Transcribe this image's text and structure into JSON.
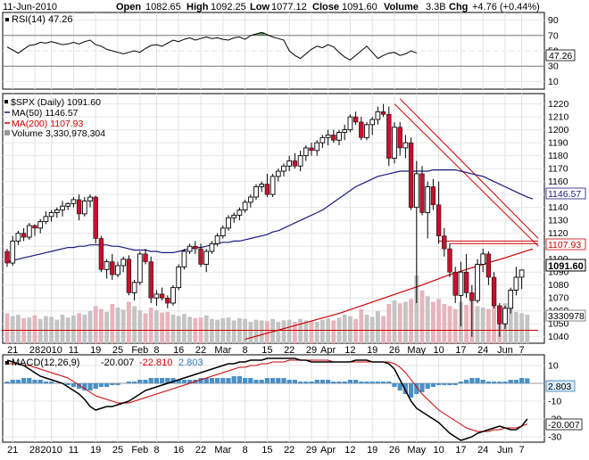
{
  "header": {
    "date": "11-Jun-2010",
    "open_label": "Open",
    "open": "1082.65",
    "high_label": "High",
    "high": "1092.25",
    "low_label": "Low",
    "low": "1077.12",
    "close_label": "Close",
    "close": "1091.60",
    "volume_label": "Volume",
    "volume": "3.3B",
    "chg_label": "Chg",
    "chg": "+4.76 (+0.44%)"
  },
  "rsi": {
    "legend": "RSI(14) 47.26",
    "value_tag": "47.26",
    "ticks": [
      "90",
      "70",
      "50",
      "30",
      "10"
    ],
    "ylim": [
      0,
      100
    ],
    "values": [
      55,
      51,
      47,
      52,
      57,
      58,
      61,
      60,
      62,
      60,
      58,
      59,
      61,
      59,
      62,
      64,
      58,
      56,
      52,
      50,
      48,
      46,
      48,
      50,
      48,
      53,
      57,
      58,
      56,
      60,
      64,
      62,
      65,
      67,
      64,
      66,
      68,
      66,
      67,
      65,
      64,
      67,
      68,
      65,
      70,
      72,
      74,
      71,
      68,
      66,
      64,
      50,
      44,
      40,
      46,
      52,
      56,
      54,
      58,
      55,
      48,
      42,
      38,
      44,
      50,
      56,
      48,
      40,
      44,
      47,
      48,
      44,
      46,
      50,
      47
    ]
  },
  "price": {
    "legend_symbol": "$SPX (Daily) 1091.60",
    "legend_ma50": "MA(50) 1146.57",
    "legend_ma200": "MA(200) 1107.93",
    "legend_volume": "Volume 3,330,978,304",
    "tag_ma50": "1146.57",
    "tag_ma200": "1107.93",
    "tag_close": "1091.60",
    "tag_volume": "3330978",
    "ticks": [
      "1220",
      "1210",
      "1200",
      "1190",
      "1180",
      "1170",
      "1160",
      "1150",
      "1140",
      "1130",
      "1120",
      "1110",
      "1100",
      "1090",
      "1080",
      "1070",
      "1060",
      "1050",
      "1040"
    ]
  },
  "macd": {
    "legend_name": "MACD(12,26,9)",
    "legend_macd": "-20.007",
    "legend_signal": "-22.810",
    "legend_hist": "2.803",
    "tag_hist": "2.803",
    "tag_macd": "-20.007",
    "ticks": [
      "10",
      "0",
      "-10",
      "-20",
      "-30"
    ]
  },
  "x_axis": {
    "labels": [
      {
        "i": 1,
        "t": "21"
      },
      {
        "i": 5,
        "t": "28"
      },
      {
        "i": 8,
        "t": "2010"
      },
      {
        "i": 12,
        "t": "11"
      },
      {
        "i": 16,
        "t": "19"
      },
      {
        "i": 20,
        "t": "25"
      },
      {
        "i": 24,
        "t": "Feb"
      },
      {
        "i": 27,
        "t": "8"
      },
      {
        "i": 31,
        "t": "16"
      },
      {
        "i": 35,
        "t": "22"
      },
      {
        "i": 39,
        "t": "Mar"
      },
      {
        "i": 43,
        "t": "8"
      },
      {
        "i": 47,
        "t": "15"
      },
      {
        "i": 51,
        "t": "22"
      },
      {
        "i": 55,
        "t": "29"
      },
      {
        "i": 58,
        "t": "Apr"
      },
      {
        "i": 62,
        "t": "12"
      },
      {
        "i": 66,
        "t": "19"
      },
      {
        "i": 70,
        "t": "26"
      },
      {
        "i": 74,
        "t": "May"
      },
      {
        "i": 78,
        "t": "10"
      },
      {
        "i": 82,
        "t": "17"
      },
      {
        "i": 86,
        "t": "24"
      },
      {
        "i": 90,
        "t": "Jun"
      },
      {
        "i": 93,
        "t": "7"
      }
    ]
  },
  "chart_data": {
    "type": "candlestick",
    "symbol": "$SPX (Daily)",
    "ylim": [
      1035,
      1228
    ],
    "candles": [
      [
        1106,
        1108,
        1094,
        1097
      ],
      [
        1097,
        1118,
        1095,
        1114
      ],
      [
        1114,
        1122,
        1111,
        1120
      ],
      [
        1120,
        1124,
        1114,
        1117
      ],
      [
        1117,
        1128,
        1115,
        1126
      ],
      [
        1126,
        1127,
        1118,
        1124
      ],
      [
        1124,
        1131,
        1120,
        1129
      ],
      [
        1129,
        1137,
        1127,
        1133
      ],
      [
        1133,
        1138,
        1129,
        1136
      ],
      [
        1136,
        1140,
        1132,
        1138
      ],
      [
        1138,
        1145,
        1133,
        1141
      ],
      [
        1141,
        1144,
        1138,
        1143
      ],
      [
        1143,
        1148,
        1140,
        1146
      ],
      [
        1146,
        1150,
        1130,
        1135
      ],
      [
        1135,
        1148,
        1133,
        1145
      ],
      [
        1145,
        1150,
        1140,
        1148
      ],
      [
        1148,
        1149,
        1112,
        1116
      ],
      [
        1116,
        1118,
        1090,
        1092
      ],
      [
        1092,
        1100,
        1085,
        1098
      ],
      [
        1098,
        1104,
        1084,
        1088
      ],
      [
        1088,
        1098,
        1086,
        1095
      ],
      [
        1095,
        1102,
        1090,
        1100
      ],
      [
        1100,
        1103,
        1072,
        1074
      ],
      [
        1074,
        1084,
        1068,
        1082
      ],
      [
        1082,
        1106,
        1080,
        1104
      ],
      [
        1104,
        1108,
        1096,
        1098
      ],
      [
        1098,
        1102,
        1066,
        1070
      ],
      [
        1070,
        1076,
        1064,
        1073
      ],
      [
        1073,
        1078,
        1068,
        1070
      ],
      [
        1070,
        1072,
        1062,
        1066
      ],
      [
        1066,
        1080,
        1064,
        1078
      ],
      [
        1078,
        1096,
        1076,
        1094
      ],
      [
        1094,
        1108,
        1092,
        1106
      ],
      [
        1106,
        1112,
        1104,
        1110
      ],
      [
        1110,
        1114,
        1104,
        1108
      ],
      [
        1108,
        1112,
        1094,
        1096
      ],
      [
        1096,
        1108,
        1090,
        1106
      ],
      [
        1106,
        1114,
        1104,
        1112
      ],
      [
        1112,
        1120,
        1110,
        1118
      ],
      [
        1118,
        1126,
        1116,
        1124
      ],
      [
        1124,
        1134,
        1122,
        1132
      ],
      [
        1132,
        1136,
        1128,
        1134
      ],
      [
        1134,
        1140,
        1130,
        1138
      ],
      [
        1138,
        1146,
        1136,
        1144
      ],
      [
        1144,
        1150,
        1140,
        1148
      ],
      [
        1148,
        1158,
        1146,
        1156
      ],
      [
        1156,
        1160,
        1152,
        1158
      ],
      [
        1158,
        1166,
        1148,
        1150
      ],
      [
        1150,
        1166,
        1148,
        1164
      ],
      [
        1164,
        1170,
        1160,
        1168
      ],
      [
        1168,
        1174,
        1164,
        1172
      ],
      [
        1172,
        1180,
        1168,
        1176
      ],
      [
        1176,
        1182,
        1170,
        1172
      ],
      [
        1172,
        1184,
        1168,
        1180
      ],
      [
        1180,
        1188,
        1176,
        1186
      ],
      [
        1186,
        1190,
        1180,
        1184
      ],
      [
        1184,
        1192,
        1180,
        1190
      ],
      [
        1190,
        1196,
        1186,
        1194
      ],
      [
        1194,
        1200,
        1188,
        1196
      ],
      [
        1196,
        1200,
        1190,
        1192
      ],
      [
        1192,
        1200,
        1188,
        1198
      ],
      [
        1198,
        1204,
        1192,
        1200
      ],
      [
        1200,
        1212,
        1198,
        1210
      ],
      [
        1210,
        1214,
        1204,
        1206
      ],
      [
        1206,
        1210,
        1192,
        1194
      ],
      [
        1194,
        1206,
        1192,
        1204
      ],
      [
        1204,
        1210,
        1196,
        1208
      ],
      [
        1208,
        1218,
        1204,
        1214
      ],
      [
        1214,
        1220,
        1210,
        1212
      ],
      [
        1212,
        1218,
        1172,
        1178
      ],
      [
        1178,
        1206,
        1174,
        1202
      ],
      [
        1202,
        1206,
        1180,
        1186
      ],
      [
        1186,
        1196,
        1178,
        1190
      ],
      [
        1190,
        1194,
        1138,
        1140
      ],
      [
        1140,
        1176,
        1066,
        1166
      ],
      [
        1166,
        1172,
        1134,
        1136
      ],
      [
        1136,
        1160,
        1116,
        1156
      ],
      [
        1156,
        1162,
        1138,
        1142
      ],
      [
        1142,
        1160,
        1112,
        1118
      ],
      [
        1118,
        1124,
        1102,
        1108
      ],
      [
        1108,
        1112,
        1086,
        1090
      ],
      [
        1090,
        1094,
        1066,
        1072
      ],
      [
        1072,
        1098,
        1048,
        1090
      ],
      [
        1090,
        1104,
        1070,
        1074
      ],
      [
        1074,
        1080,
        1040,
        1068
      ],
      [
        1068,
        1100,
        1066,
        1096
      ],
      [
        1096,
        1108,
        1090,
        1104
      ],
      [
        1104,
        1106,
        1080,
        1086
      ],
      [
        1086,
        1090,
        1062,
        1064
      ],
      [
        1064,
        1066,
        1040,
        1050
      ],
      [
        1050,
        1064,
        1046,
        1062
      ],
      [
        1062,
        1078,
        1058,
        1076
      ],
      [
        1076,
        1094,
        1072,
        1086
      ],
      [
        1086,
        1092,
        1077,
        1091.6
      ]
    ],
    "ma50": [
      1098,
      1099,
      1100,
      1101,
      1102,
      1103,
      1104,
      1105,
      1106,
      1107,
      1108,
      1109,
      1109,
      1110,
      1110,
      1111,
      1111,
      1111,
      1111,
      1110,
      1110,
      1109,
      1108,
      1107,
      1107,
      1107,
      1106,
      1106,
      1105,
      1105,
      1105,
      1106,
      1107,
      1108,
      1109,
      1109,
      1110,
      1111,
      1112,
      1113,
      1113,
      1114,
      1114,
      1115,
      1116,
      1117,
      1118,
      1119,
      1121,
      1122,
      1124,
      1126,
      1128,
      1130,
      1132,
      1134,
      1136,
      1138,
      1141,
      1144,
      1147,
      1150,
      1153,
      1156,
      1158,
      1160,
      1162,
      1164,
      1165,
      1166,
      1167,
      1168,
      1168,
      1168,
      1168,
      1168,
      1168,
      1169,
      1169,
      1169,
      1169,
      1169,
      1168,
      1167,
      1166,
      1165,
      1164,
      1162,
      1160,
      1158,
      1156,
      1154,
      1152,
      1150,
      1148,
      1146.57
    ],
    "ma200_points": [
      [
        43,
        1038
      ],
      [
        60,
        1058
      ],
      [
        75,
        1080
      ],
      [
        80,
        1088
      ],
      [
        86,
        1096
      ],
      [
        90,
        1101
      ],
      [
        95,
        1107.93
      ]
    ],
    "volume": {
      "note": "relative volume levels 0..1",
      "values": [
        0.42,
        0.38,
        0.4,
        0.35,
        0.36,
        0.39,
        0.34,
        0.38,
        0.37,
        0.33,
        0.4,
        0.36,
        0.39,
        0.42,
        0.4,
        0.45,
        0.52,
        0.48,
        0.44,
        0.55,
        0.5,
        0.47,
        0.58,
        0.52,
        0.46,
        0.42,
        0.5,
        0.46,
        0.43,
        0.44,
        0.4,
        0.38,
        0.41,
        0.37,
        0.35,
        0.36,
        0.39,
        0.34,
        0.33,
        0.35,
        0.36,
        0.32,
        0.35,
        0.34,
        0.3,
        0.33,
        0.32,
        0.31,
        0.34,
        0.3,
        0.32,
        0.33,
        0.3,
        0.34,
        0.32,
        0.31,
        0.3,
        0.33,
        0.35,
        0.32,
        0.36,
        0.4,
        0.38,
        0.34,
        0.48,
        0.4,
        0.37,
        0.45,
        0.38,
        0.55,
        0.6,
        0.56,
        0.58,
        0.62,
        0.95,
        0.74,
        0.66,
        0.58,
        0.62,
        0.55,
        0.52,
        0.48,
        0.58,
        0.54,
        0.6,
        0.52,
        0.5,
        0.48,
        0.55,
        0.52,
        0.56,
        0.5,
        0.44,
        0.42,
        0.4
      ]
    },
    "trendlines": [
      {
        "name": "down-channel-upper",
        "from": [
          71,
          1224
        ],
        "to": [
          96,
          1116
        ]
      },
      {
        "name": "down-channel-lower",
        "from": [
          70,
          1220
        ],
        "to": [
          96,
          1110
        ]
      },
      {
        "name": "resistance-upper",
        "from": [
          78,
          1114
        ],
        "to": [
          96,
          1114
        ]
      },
      {
        "name": "resistance-lower",
        "from": [
          80,
          1112
        ],
        "to": [
          96,
          1112
        ]
      },
      {
        "name": "support",
        "from": [
          -1,
          1045
        ],
        "to": [
          96,
          1045
        ]
      }
    ],
    "macd": {
      "ylim": [
        -33,
        16
      ],
      "hist": [
        1,
        2,
        2,
        3,
        3,
        2,
        2,
        1,
        1,
        0,
        0,
        -1,
        -2,
        -3,
        -4,
        -4,
        -3,
        -2,
        -2,
        -1,
        -1,
        0,
        1,
        1,
        2,
        2,
        3,
        3,
        3,
        3,
        3,
        2,
        2,
        2,
        2,
        3,
        3,
        3,
        3,
        3,
        3,
        4,
        4,
        3,
        3,
        2,
        2,
        3,
        3,
        3,
        3,
        2,
        2,
        1,
        1,
        1,
        2,
        2,
        2,
        1,
        1,
        1,
        2,
        2,
        1,
        1,
        1,
        1,
        1,
        1,
        -2,
        -4,
        -6,
        -8,
        -6,
        -5,
        -3,
        -2,
        -1,
        -1,
        -1,
        -1,
        1,
        2,
        3,
        3,
        2,
        1,
        1,
        1,
        1,
        2,
        2,
        3,
        2.8
      ],
      "macd_line": [
        13,
        12,
        11,
        10,
        8,
        6,
        4,
        3,
        2,
        1,
        0,
        -2,
        -4,
        -6,
        -9,
        -13,
        -15,
        -14,
        -13,
        -13,
        -12,
        -11,
        -10,
        -8,
        -6,
        -4,
        -3,
        -2,
        -1,
        0,
        1,
        2,
        3,
        4,
        5,
        6,
        7,
        8,
        9,
        10,
        11,
        11,
        12,
        12,
        13,
        13,
        13,
        14,
        14,
        14,
        14,
        14,
        14,
        13,
        13,
        12,
        12,
        12,
        12,
        12,
        12,
        12,
        12,
        13,
        13,
        13,
        12,
        12,
        12,
        11,
        8,
        2,
        -4,
        -10,
        -14,
        -16,
        -18,
        -20,
        -22,
        -25,
        -28,
        -30,
        -32,
        -31,
        -30,
        -28,
        -27,
        -26,
        -25,
        -24,
        -25,
        -26,
        -26,
        -24,
        -20
      ],
      "signal_line": [
        11,
        11,
        11,
        10,
        10,
        9,
        8,
        7,
        6,
        5,
        4,
        3,
        1,
        -1,
        -3,
        -5,
        -7,
        -8,
        -9,
        -10,
        -11,
        -11,
        -11,
        -10,
        -9,
        -8,
        -7,
        -6,
        -5,
        -4,
        -3,
        -2,
        -1,
        0,
        1,
        2,
        3,
        4,
        5,
        6,
        7,
        8,
        9,
        9,
        10,
        10,
        11,
        11,
        12,
        12,
        12,
        13,
        13,
        13,
        13,
        13,
        13,
        13,
        13,
        12,
        12,
        12,
        12,
        12,
        12,
        12,
        12,
        12,
        12,
        12,
        11,
        9,
        6,
        2,
        -2,
        -6,
        -9,
        -12,
        -15,
        -17,
        -19,
        -21,
        -23,
        -25,
        -26,
        -27,
        -27,
        -27,
        -26,
        -26,
        -25,
        -25,
        -25,
        -24,
        -22.8
      ]
    }
  }
}
